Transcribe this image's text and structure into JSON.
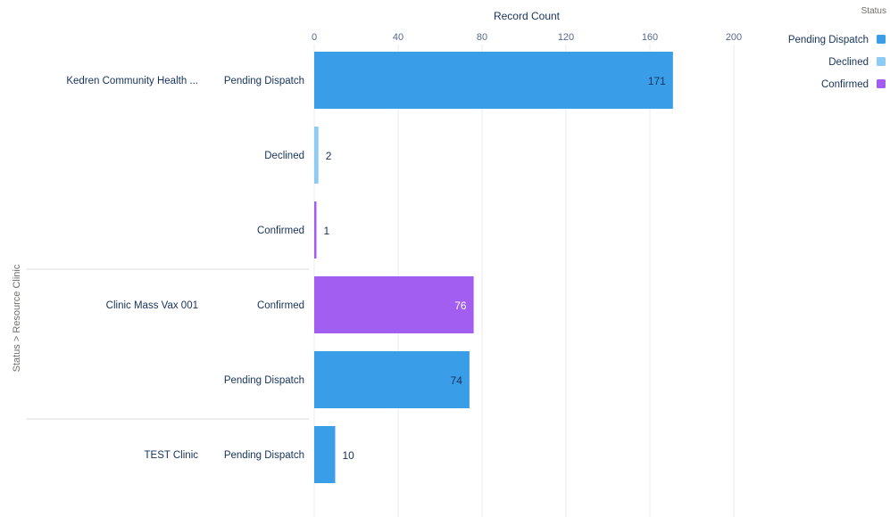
{
  "chart_data": {
    "type": "bar",
    "orientation": "horizontal",
    "grouping": [
      "Resource Clinic",
      "Status"
    ],
    "xlabel": "Record Count",
    "ylabel": "Status > Resource Clinic",
    "xlim": [
      0,
      200
    ],
    "xticks": [
      0,
      40,
      80,
      120,
      160,
      200
    ],
    "grid": true,
    "legend": {
      "title": "Status",
      "position": "top-right",
      "entries": [
        {
          "label": "Pending Dispatch",
          "color": "#3a9de8"
        },
        {
          "label": "Declined",
          "color": "#8ecbf2"
        },
        {
          "label": "Confirmed",
          "color": "#a25ef0"
        }
      ]
    },
    "groups": [
      {
        "label": "Kedren Community Health ...",
        "bars": [
          {
            "status": "Pending Dispatch",
            "value": 171
          },
          {
            "status": "Declined",
            "value": 2
          },
          {
            "status": "Confirmed",
            "value": 1
          }
        ]
      },
      {
        "label": "Clinic Mass Vax 001",
        "bars": [
          {
            "status": "Confirmed",
            "value": 76
          },
          {
            "status": "Pending Dispatch",
            "value": 74
          }
        ]
      },
      {
        "label": "TEST Clinic",
        "bars": [
          {
            "status": "Pending Dispatch",
            "value": 10
          }
        ]
      }
    ]
  }
}
